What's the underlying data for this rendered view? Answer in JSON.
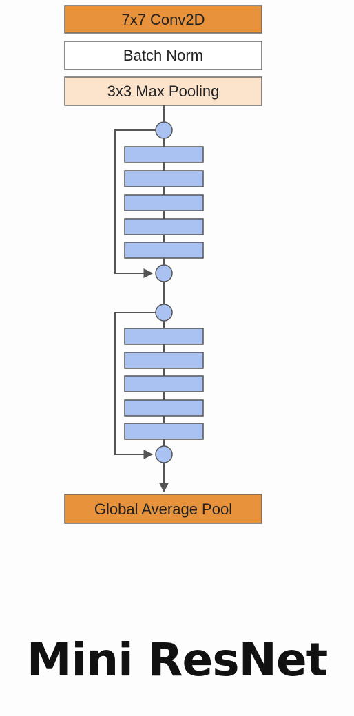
{
  "diagram": {
    "layers": {
      "conv": "7x7 Conv2D",
      "batch_norm": "Batch Norm",
      "max_pool": "3x3 Max Pooling",
      "global_pool": "Global Average Pool"
    },
    "residual_blocks": [
      {
        "layer_count": 5
      },
      {
        "layer_count": 5
      }
    ]
  },
  "colors": {
    "conv_fill": "#e8923c",
    "batch_norm_fill": "#ffffff",
    "max_pool_fill": "#fbe3cc",
    "global_pool_fill": "#e8923c",
    "layer_fill": "#a9c2f2",
    "node_fill": "#a9c2f2",
    "stroke": "#555555"
  },
  "title": "Mini ResNet"
}
